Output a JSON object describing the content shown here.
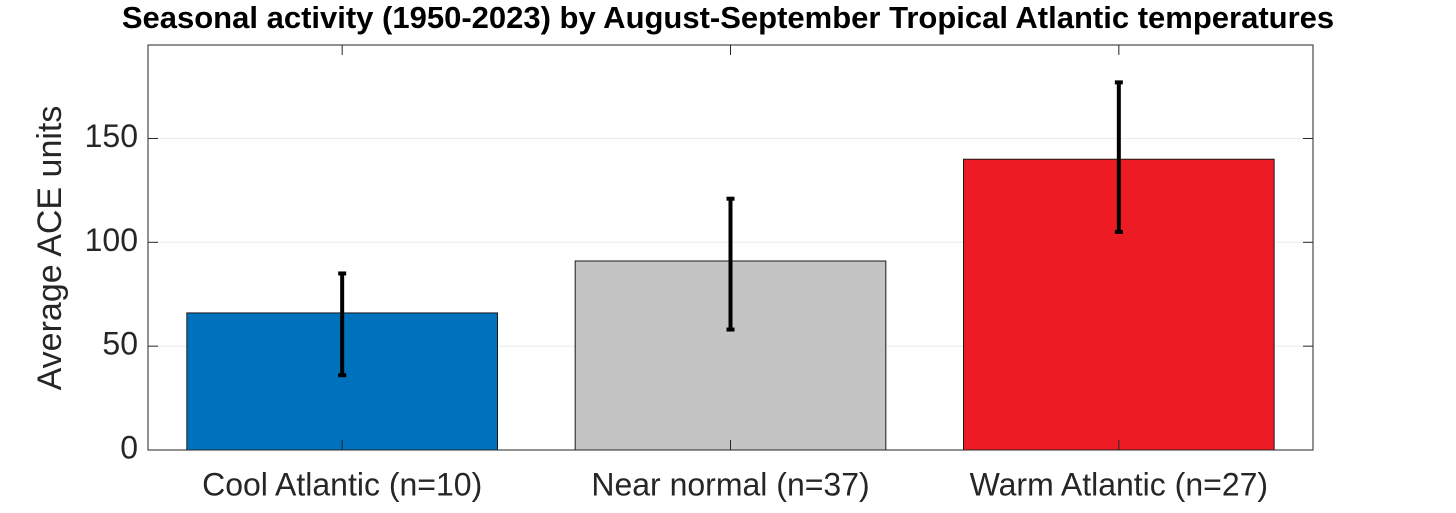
{
  "chart_data": {
    "type": "bar",
    "title": "Seasonal activity (1950-2023) by August-September Tropical Atlantic temperatures",
    "y_label": "Average ACE units",
    "categories": [
      "Cool Atlantic (n=10)",
      "Near normal (n=37)",
      "Warm Atlantic (n=27)"
    ],
    "values": [
      66,
      91,
      140
    ],
    "lower": [
      36,
      58,
      105
    ],
    "upper": [
      85,
      121,
      177
    ],
    "colors": [
      "#0072bd",
      "#c4c4c4",
      "#ed1c24"
    ],
    "ylim": [
      0,
      195
    ],
    "yticks": [
      0,
      50,
      100,
      150
    ],
    "grid": true
  }
}
